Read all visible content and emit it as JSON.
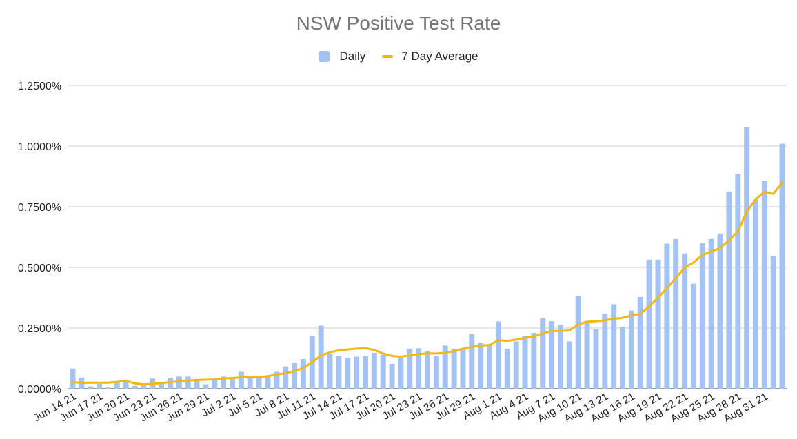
{
  "colors": {
    "daily": "#a4c2f4",
    "average": "#f1b80f",
    "grid": "#cccccc",
    "axis": "#333333",
    "title": "#757575"
  },
  "chart_data": {
    "type": "bar",
    "title": "NSW Positive Test Rate",
    "legend_position": "top",
    "grid": true,
    "ylim": [
      0,
      1.25
    ],
    "y_ticks": [
      {
        "value": 0,
        "label": "0.0000%"
      },
      {
        "value": 0.25,
        "label": "0.2500%"
      },
      {
        "value": 0.5,
        "label": "0.5000%"
      },
      {
        "value": 0.75,
        "label": "0.7500%"
      },
      {
        "value": 1.0,
        "label": "1.0000%"
      },
      {
        "value": 1.25,
        "label": "1.2500%"
      }
    ],
    "x_tick_labels": [
      {
        "index": 0,
        "label": "Jun 14 21"
      },
      {
        "index": 3,
        "label": "Jun 17 21"
      },
      {
        "index": 6,
        "label": "Jun 20 21"
      },
      {
        "index": 9,
        "label": "Jun 23 21"
      },
      {
        "index": 12,
        "label": "Jun 26 21"
      },
      {
        "index": 15,
        "label": "Jun 29 21"
      },
      {
        "index": 18,
        "label": "Jul 2 21"
      },
      {
        "index": 21,
        "label": "Jul 5 21"
      },
      {
        "index": 24,
        "label": "Jul 8 21"
      },
      {
        "index": 27,
        "label": "Jul 11 21"
      },
      {
        "index": 30,
        "label": "Jul 14 21"
      },
      {
        "index": 33,
        "label": "Jul 17 21"
      },
      {
        "index": 36,
        "label": "Jul 20 21"
      },
      {
        "index": 39,
        "label": "Jul 23 21"
      },
      {
        "index": 42,
        "label": "Jul 26 21"
      },
      {
        "index": 45,
        "label": "Jul 29 21"
      },
      {
        "index": 48,
        "label": "Aug 1 21"
      },
      {
        "index": 51,
        "label": "Aug 4 21"
      },
      {
        "index": 54,
        "label": "Aug 7 21"
      },
      {
        "index": 57,
        "label": "Aug 10 21"
      },
      {
        "index": 60,
        "label": "Aug 13 21"
      },
      {
        "index": 63,
        "label": "Aug 16 21"
      },
      {
        "index": 66,
        "label": "Aug 19 21"
      },
      {
        "index": 69,
        "label": "Aug 22 21"
      },
      {
        "index": 72,
        "label": "Aug 25 21"
      },
      {
        "index": 75,
        "label": "Aug 28 21"
      },
      {
        "index": 78,
        "label": "Aug 31 21"
      }
    ],
    "series": [
      {
        "name": "Daily",
        "type": "bar",
        "values": [
          0.083,
          0.046,
          0.01,
          0.02,
          0.005,
          0.026,
          0.03,
          0.012,
          0.015,
          0.042,
          0.025,
          0.045,
          0.05,
          0.05,
          0.04,
          0.018,
          0.04,
          0.05,
          0.048,
          0.07,
          0.045,
          0.05,
          0.055,
          0.07,
          0.092,
          0.107,
          0.122,
          0.217,
          0.26,
          0.145,
          0.135,
          0.128,
          0.132,
          0.135,
          0.148,
          0.14,
          0.103,
          0.128,
          0.165,
          0.167,
          0.155,
          0.135,
          0.178,
          0.165,
          0.168,
          0.225,
          0.19,
          0.18,
          0.277,
          0.165,
          0.195,
          0.217,
          0.23,
          0.29,
          0.278,
          0.263,
          0.195,
          0.382,
          0.28,
          0.245,
          0.31,
          0.348,
          0.255,
          0.322,
          0.378,
          0.532,
          0.532,
          0.598,
          0.617,
          0.558,
          0.433,
          0.602,
          0.617,
          0.64,
          0.813,
          0.885,
          1.08,
          0.78,
          0.855,
          0.548,
          1.01
        ]
      },
      {
        "name": "7 Day Average",
        "type": "line",
        "values": [
          0.027,
          0.024,
          0.025,
          0.025,
          0.025,
          0.028,
          0.033,
          0.022,
          0.018,
          0.02,
          0.023,
          0.027,
          0.03,
          0.033,
          0.036,
          0.037,
          0.038,
          0.042,
          0.044,
          0.047,
          0.047,
          0.048,
          0.052,
          0.058,
          0.064,
          0.072,
          0.085,
          0.11,
          0.137,
          0.15,
          0.158,
          0.162,
          0.165,
          0.167,
          0.16,
          0.145,
          0.135,
          0.132,
          0.137,
          0.142,
          0.146,
          0.145,
          0.148,
          0.155,
          0.165,
          0.172,
          0.178,
          0.18,
          0.2,
          0.197,
          0.202,
          0.21,
          0.215,
          0.228,
          0.238,
          0.238,
          0.24,
          0.265,
          0.276,
          0.278,
          0.282,
          0.288,
          0.292,
          0.302,
          0.308,
          0.34,
          0.375,
          0.415,
          0.455,
          0.5,
          0.52,
          0.552,
          0.565,
          0.58,
          0.612,
          0.648,
          0.73,
          0.78,
          0.812,
          0.803,
          0.85
        ]
      }
    ]
  }
}
